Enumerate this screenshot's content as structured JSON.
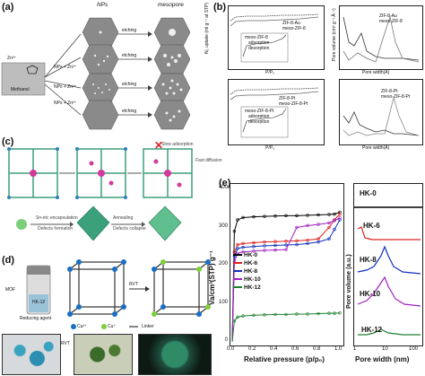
{
  "panel_a": {
    "letter": "(a)",
    "column_titles": [
      "NPs",
      "mesopore"
    ],
    "precursor_label": "Methanol",
    "ion_label": "Zn²⁺",
    "arrow_labels": [
      "etching",
      "etching",
      "etching",
      "etching"
    ],
    "reaction_labels": [
      "NPs + Zn²⁺",
      "NPs + Zn²⁺",
      "NPs + Zn²⁺"
    ],
    "npz_labels": [
      "NPs",
      "NPs",
      "NPs"
    ]
  },
  "panel_b": {
    "letter": "(b)",
    "top_left": {
      "ylabel": "N₂ uptake (ml g⁻¹ at STP)",
      "xlabel": "P/P₀",
      "legend": [
        "ZIF-8-Au",
        "meso-ZIF-8"
      ],
      "inset_legend": [
        "adsorption",
        "desorption"
      ],
      "inset_title": "meso-ZIF-8"
    },
    "top_right": {
      "ylabel": "Pore volume (cm³ g⁻¹ Å⁻¹)",
      "xlabel": "Pore width(Å)",
      "legend": [
        "ZIF-8-Au",
        "meso-ZIF-8"
      ]
    },
    "bottom_left": {
      "ylabel": "N₂ uptake (ml g⁻¹ at STP)",
      "xlabel": "P/P₀",
      "legend": [
        "ZIF-8-Pt",
        "meso-ZIF-8-Pt"
      ],
      "inset_legend": [
        "adsorption",
        "desorption"
      ],
      "inset_title": "meso-ZIF-8-Pt"
    },
    "bottom_right": {
      "ylabel": "Pore volume (cm³ g⁻¹ Å⁻¹)",
      "xlabel": "Pore width(Å)",
      "legend": [
        "ZIF-8-Pt",
        "meso-ZIF-8-Pt"
      ]
    },
    "x_ticks_p": [
      "0.0",
      "0.2",
      "0.4",
      "0.6",
      "0.8",
      "1.0"
    ],
    "x_ticks_w": [
      "10",
      "100"
    ]
  },
  "panel_c": {
    "letter": "(c)",
    "labels": [
      "Sn-etc encapsulation",
      "Defects formation",
      "Annealing",
      "Defects collapse",
      "Fast diffusion",
      "Slow adsorption"
    ]
  },
  "panel_d": {
    "letter": "(d)",
    "mof_label": "MOF",
    "reducing_label": "Reducing agent",
    "vial_label": "HK-12",
    "rvt_label": "RVT",
    "legend": [
      "Cu²⁺",
      "Cu⁺",
      "Linker"
    ],
    "cu2_color": "#1a6fc4",
    "cu1_color": "#7fcf3a"
  },
  "panel_e": {
    "letter": "(e)",
    "ylabel": "Va/cm³(STP) g⁻¹",
    "xlabel": "Relative pressure (p/p₀)",
    "x_ticks": [
      "0.0",
      "0.2",
      "0.4",
      "0.6",
      "0.8",
      "1.0"
    ],
    "y_ticks": [
      "0",
      "100",
      "200",
      "300",
      "400"
    ],
    "right_ylabel": "Pore volume (a.u.)",
    "right_xlabel": "Pore width (nm)",
    "right_x_ticks": [
      "1",
      "10",
      "100"
    ],
    "right_labels": [
      "HK-0",
      "HK-6",
      "HK-8",
      "HK-10",
      "HK-12"
    ]
  },
  "chart_data": [
    {
      "type": "line",
      "title": "",
      "xlabel": "Relative pressure (p/p₀)",
      "ylabel": "Va/cm³(STP) g⁻¹",
      "xlim": [
        0,
        1
      ],
      "ylim": [
        0,
        400
      ],
      "legend_position": "left",
      "x": [
        0.0,
        0.02,
        0.05,
        0.1,
        0.2,
        0.3,
        0.4,
        0.5,
        0.6,
        0.7,
        0.8,
        0.9,
        0.95,
        1.0
      ],
      "series": [
        {
          "name": "HK-0",
          "color": "#000000",
          "values": [
            0,
            290,
            320,
            326,
            328,
            329,
            330,
            331,
            331,
            332,
            333,
            334,
            335,
            340
          ]
        },
        {
          "name": "HK-6",
          "color": "#e02020",
          "values": [
            0,
            235,
            255,
            258,
            260,
            262,
            263,
            264,
            265,
            267,
            270,
            300,
            320,
            335
          ]
        },
        {
          "name": "HK-8",
          "color": "#1030c0",
          "values": [
            0,
            225,
            245,
            248,
            250,
            252,
            253,
            254,
            255,
            258,
            262,
            270,
            295,
            320
          ]
        },
        {
          "name": "HK-10",
          "color": "#a020c0",
          "values": [
            0,
            210,
            232,
            236,
            238,
            240,
            241,
            242,
            300,
            305,
            308,
            312,
            318,
            325
          ]
        },
        {
          "name": "HK-12",
          "color": "#208030",
          "values": [
            0,
            55,
            65,
            68,
            70,
            71,
            72,
            72,
            73,
            73,
            74,
            75,
            75,
            76
          ]
        }
      ]
    }
  ]
}
